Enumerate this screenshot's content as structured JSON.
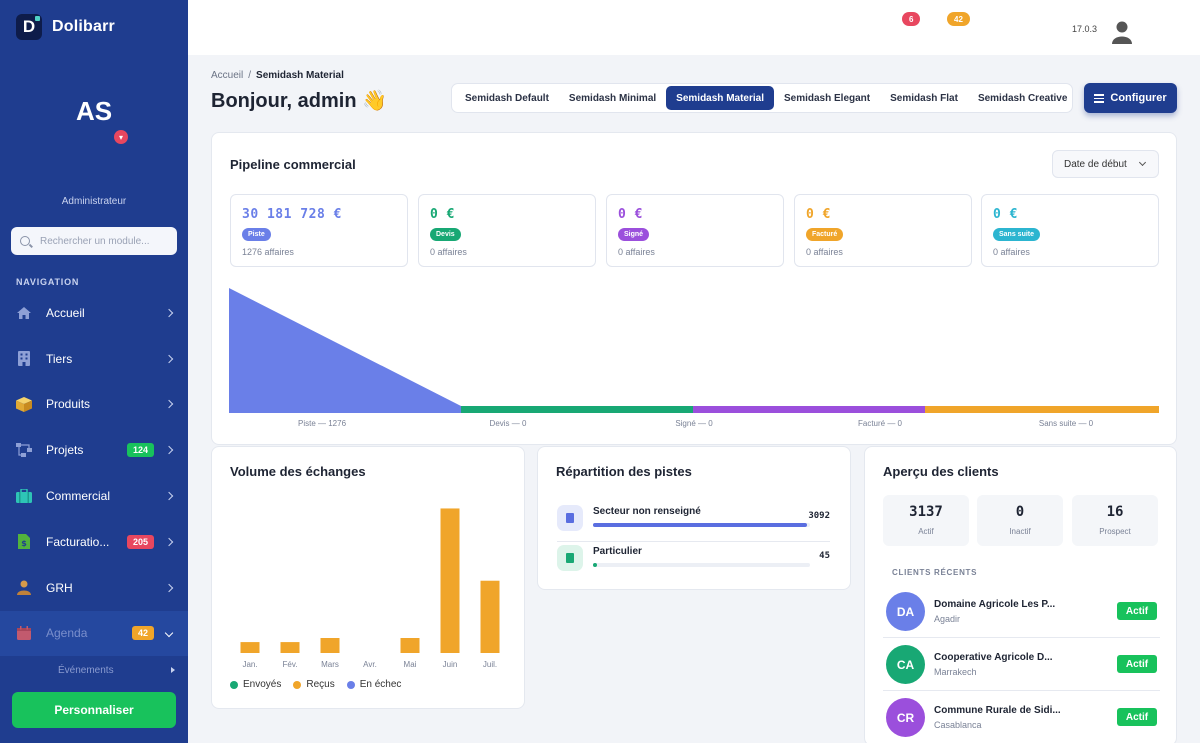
{
  "brand": {
    "name": "Dolibarr",
    "logo_letter": "D"
  },
  "user": {
    "initials": "AS",
    "role": "Administrateur",
    "version": "17.0.3"
  },
  "search": {
    "placeholder": "Rechercher un module..."
  },
  "nav": {
    "title": "NAVIGATION",
    "items": [
      {
        "label": "Accueil",
        "icon": "home-icon",
        "badge": null
      },
      {
        "label": "Tiers",
        "icon": "building-icon",
        "badge": null
      },
      {
        "label": "Produits",
        "icon": "box-icon",
        "badge": null
      },
      {
        "label": "Projets",
        "icon": "project-icon",
        "badge": "124",
        "badge_color": "#18c25c"
      },
      {
        "label": "Commercial",
        "icon": "briefcase-icon",
        "badge": null
      },
      {
        "label": "Facturatio...",
        "icon": "invoice-icon",
        "badge": "205",
        "badge_color": "#e8475f"
      },
      {
        "label": "GRH",
        "icon": "person-icon",
        "badge": null
      },
      {
        "label": "Agenda",
        "icon": "calendar-icon",
        "badge": "42",
        "badge_color": "#f0a52a"
      }
    ],
    "subitem": "Événements",
    "customize_label": "Personnaliser"
  },
  "topbar": {
    "badges": [
      {
        "value": "6",
        "color": "#e8475f"
      },
      {
        "value": "42",
        "color": "#f0a52a"
      }
    ]
  },
  "breadcrumb": {
    "home": "Accueil",
    "separator": "/",
    "current": "Semidash Material"
  },
  "greeting": "Bonjour, admin 👋",
  "tabs": [
    {
      "label": "Semidash Default",
      "active": false
    },
    {
      "label": "Semidash Minimal",
      "active": false
    },
    {
      "label": "Semidash Material",
      "active": true
    },
    {
      "label": "Semidash Elegant",
      "active": false
    },
    {
      "label": "Semidash Flat",
      "active": false
    },
    {
      "label": "Semidash Creative",
      "active": false
    }
  ],
  "configure_label": "Configurer",
  "pipeline": {
    "title": "Pipeline commercial",
    "date_select": "Date de début",
    "stages": [
      {
        "value": "30 181 728 €",
        "label": "Piste",
        "count": "1276 affaires",
        "color": "#6a7fe8"
      },
      {
        "value": "0 €",
        "label": "Devis",
        "count": "0 affaires",
        "color": "#18a874"
      },
      {
        "value": "0 €",
        "label": "Signé",
        "count": "0 affaires",
        "color": "#9b4fdc"
      },
      {
        "value": "0 €",
        "label": "Facturé",
        "count": "0 affaires",
        "color": "#f0a52a"
      },
      {
        "value": "0 €",
        "label": "Sans suite",
        "count": "0 affaires",
        "color": "#2cb5d0"
      }
    ],
    "funnel_labels": [
      "Piste — 1276",
      "Devis — 0",
      "Signé — 0",
      "Facturé — 0",
      "Sans suite — 0"
    ]
  },
  "volume": {
    "title": "Volume des échanges",
    "legend": [
      {
        "label": "Envoyés",
        "color": "#18a874"
      },
      {
        "label": "Reçus",
        "color": "#f0a52a"
      },
      {
        "label": "En échec",
        "color": "#6a7fe8"
      }
    ]
  },
  "chart_data": {
    "type": "bar",
    "categories": [
      "Jan.",
      "Fév.",
      "Mars",
      "Avr.",
      "Mai",
      "Juin",
      "Juil."
    ],
    "series": [
      {
        "name": "Envoyés",
        "values": [
          0,
          0,
          0,
          0,
          0,
          0,
          0
        ]
      },
      {
        "name": "Reçus",
        "values": [
          8,
          8,
          11,
          0,
          11,
          106,
          53
        ]
      },
      {
        "name": "En échec",
        "values": [
          0,
          0,
          0,
          0,
          0,
          0,
          0
        ]
      }
    ],
    "ylim": [
      0,
      110
    ],
    "legend": "bottom",
    "grid": false
  },
  "repartition": {
    "title": "Répartition des pistes",
    "rows": [
      {
        "label": "Secteur non renseigné",
        "value": "3092",
        "fraction": 0.986,
        "color": "#5a6ee0",
        "icon_bg": "#e6eafb"
      },
      {
        "label": "Particulier",
        "value": "45",
        "fraction": 0.014,
        "color": "#18a874",
        "icon_bg": "#ddf4ea"
      }
    ]
  },
  "clients": {
    "title": "Aperçu des clients",
    "stats": [
      {
        "value": "3137",
        "label": "Actif"
      },
      {
        "value": "0",
        "label": "Inactif"
      },
      {
        "value": "16",
        "label": "Prospect"
      }
    ],
    "recent_title": "CLIENTS RÉCENTS",
    "recent": [
      {
        "initials": "DA",
        "name": "Domaine Agricole Les P...",
        "city": "Agadir",
        "status": "Actif",
        "color": "#6a7fe8"
      },
      {
        "initials": "CA",
        "name": "Cooperative Agricole D...",
        "city": "Marrakech",
        "status": "Actif",
        "color": "#18a874"
      },
      {
        "initials": "CR",
        "name": "Commune Rurale de Sidi...",
        "city": "Casablanca",
        "status": "Actif",
        "color": "#9b4fdc"
      }
    ]
  }
}
